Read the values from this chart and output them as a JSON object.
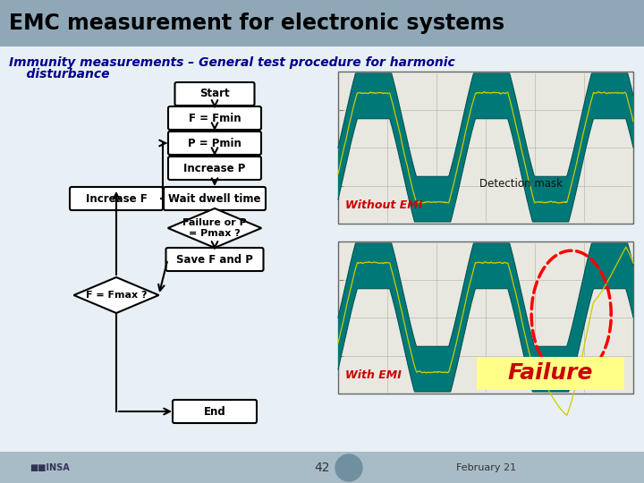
{
  "title": "EMC measurement for electronic systems",
  "subtitle_line1": "Immunity measurements – General test procedure for harmonic",
  "subtitle_line2": "    disturbance",
  "title_bg_color": "#8fa8b8",
  "slide_bg_color": "#c8d8e4",
  "body_bg_color": "#dce8f0",
  "title_text_color": "#000000",
  "subtitle_text_color": "#00008B",
  "emi_top_label": "Without EMI",
  "emi_top_mask_label": "Detection mask",
  "emi_bottom_label": "With EMI",
  "emi_failure_label": "Failure",
  "emi_failure_bg": "#ffff88",
  "emi_label_color": "#cc0000",
  "emi_failure_color": "#cc0000",
  "page_number": "42",
  "date_text": "February 21",
  "teal_color": "#007878",
  "teal_dark": "#005555",
  "box_fill": "#ffffff",
  "box_edge": "#000000",
  "arrow_color": "#000000",
  "footer_bg": "#a8bcc8",
  "footer_circle": "#7090a0"
}
